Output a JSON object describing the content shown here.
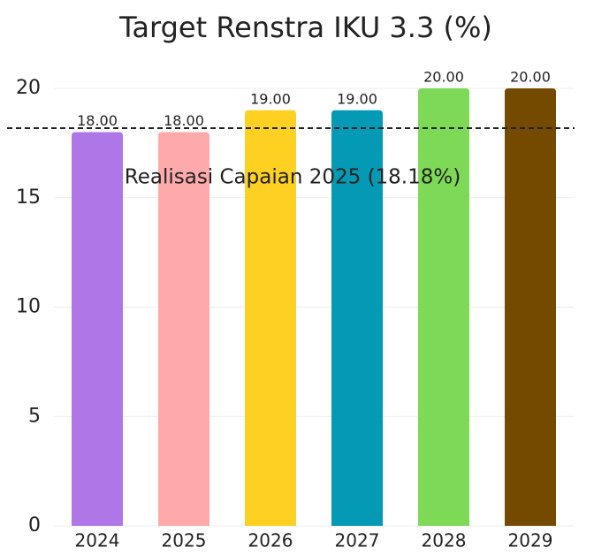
{
  "chart_data": {
    "type": "bar",
    "title": "Target Renstra IKU 3.3 (%)",
    "categories": [
      "2024",
      "2025",
      "2026",
      "2027",
      "2028",
      "2029"
    ],
    "values": [
      18,
      18,
      19,
      19,
      20,
      20
    ],
    "value_labels": [
      "18.00",
      "18.00",
      "19.00",
      "19.00",
      "20.00",
      "20.00"
    ],
    "colors": [
      "#ae76e6",
      "#ffaaaa",
      "#fdd022",
      "#0499b4",
      "#7ed957",
      "#744a00"
    ],
    "ylim": [
      0,
      20
    ],
    "yticks": [
      0,
      5,
      10,
      15,
      20
    ],
    "grid": true,
    "reference_line": {
      "value": 18.18,
      "label": "Realisasi Capaian 2025 (18.18%)"
    }
  }
}
